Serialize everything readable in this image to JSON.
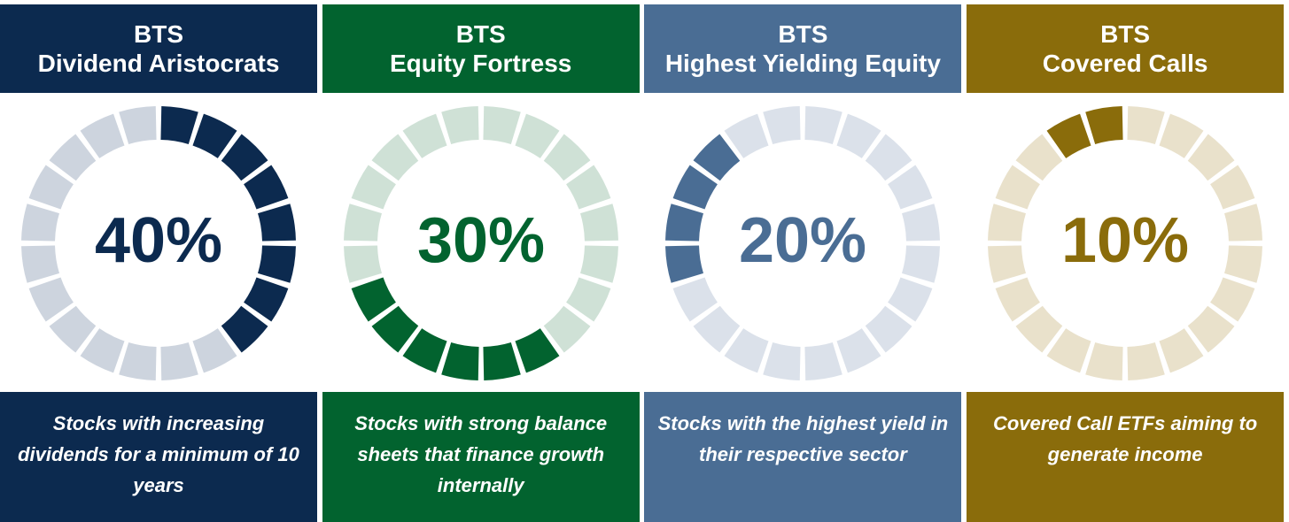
{
  "chart_data": [
    {
      "type": "donut",
      "title": "BTS",
      "subtitle": "Dividend Aristocrats",
      "values": [
        40
      ],
      "value_labels": [
        "40%"
      ],
      "color": "#0c2a4f",
      "track_color": "#cdd4de",
      "annotation": "Stocks with increasing dividends for a minimum of 10 years"
    },
    {
      "type": "donut",
      "title": "BTS",
      "subtitle": "Equity Fortress",
      "values": [
        30
      ],
      "value_labels": [
        "30%"
      ],
      "color": "#02632f",
      "track_color": "#cfe1d6",
      "annotation": "Stocks with strong balance sheets that finance growth internally"
    },
    {
      "type": "donut",
      "title": "BTS",
      "subtitle": "Highest Yielding Equity",
      "values": [
        20
      ],
      "value_labels": [
        "20%"
      ],
      "color": "#4a6d94",
      "track_color": "#dbe1ea",
      "annotation": "Stocks with the highest yield in their respective sector"
    },
    {
      "type": "donut",
      "title": "BTS",
      "subtitle": "Covered Calls",
      "values": [
        10
      ],
      "value_labels": [
        "10%"
      ],
      "color": "#8a6c0b",
      "track_color": "#e9e1cb",
      "annotation": "Covered Call ETFs aiming to generate income"
    }
  ]
}
